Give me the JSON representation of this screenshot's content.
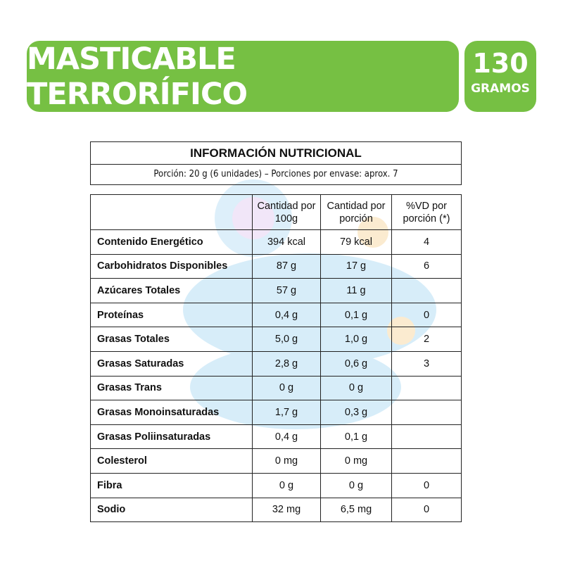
{
  "product": {
    "title": "MASTICABLE TERRORÍFICO",
    "weight_value": "130",
    "weight_unit": "GRAMOS",
    "brand_color": "#76c043"
  },
  "nutrition": {
    "title": "INFORMACIÓN NUTRICIONAL",
    "serving": "Porción: 20 g (6 unidades) – Porciones por envase: aprox. 7",
    "headers": [
      "",
      "Cantidad por 100g",
      "Cantidad por porción",
      "%VD por porción (*)"
    ],
    "rows": [
      [
        "Contenido Energético",
        "394 kcal",
        "79 kcal",
        "4"
      ],
      [
        "Carbohidratos Disponibles",
        "87 g",
        "17 g",
        "6"
      ],
      [
        "Azúcares Totales",
        "57 g",
        "11 g",
        ""
      ],
      [
        "Proteínas",
        "0,4 g",
        "0,1 g",
        "0"
      ],
      [
        "Grasas Totales",
        "5,0 g",
        "1,0 g",
        "2"
      ],
      [
        "Grasas Saturadas",
        "2,8 g",
        "0,6 g",
        "3"
      ],
      [
        "Grasas Trans",
        "0 g",
        "0 g",
        ""
      ],
      [
        "Grasas Monoinsaturadas",
        "1,7 g",
        "0,3 g",
        ""
      ],
      [
        "Grasas Poliinsaturadas",
        "0,4 g",
        "0,1 g",
        ""
      ],
      [
        "Colesterol",
        "0 mg",
        "0 mg",
        ""
      ],
      [
        "Fibra",
        "0 g",
        "0 g",
        "0"
      ],
      [
        "Sodio",
        "32 mg",
        "6,5 mg",
        "0"
      ]
    ]
  }
}
